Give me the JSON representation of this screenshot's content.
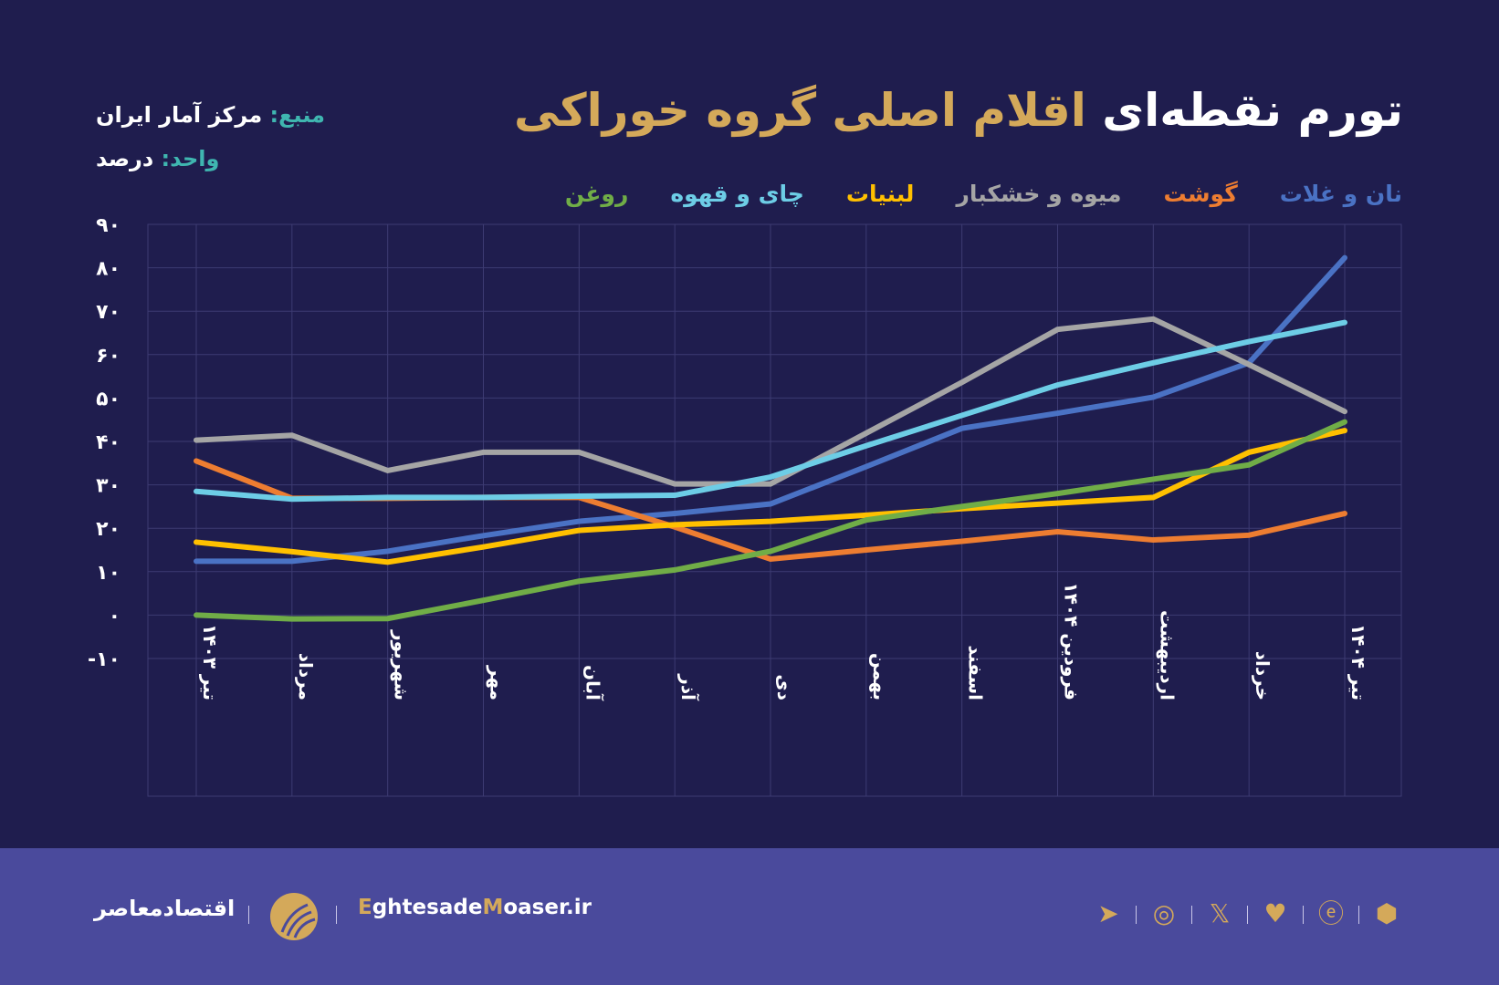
{
  "title": {
    "part1": "تورم نقطه‌ای",
    "part2": "اقلام اصلی گروه خوراکی"
  },
  "meta": {
    "source_label": "منبع:",
    "source_value": "مرکز آمار ایران",
    "unit_label": "واحد:",
    "unit_value": "درصد"
  },
  "colors": {
    "background": "#1f1d4e",
    "footer": "#4a4a9c",
    "gold": "#d4a95a",
    "meta_label": "#3fb6b0",
    "grid": "#3d3b72"
  },
  "chart_data": {
    "type": "line",
    "ylim": [
      -10,
      90
    ],
    "grid": true,
    "legend": "top",
    "y_ticks": [
      90,
      80,
      70,
      60,
      50,
      40,
      30,
      20,
      10,
      0,
      -10
    ],
    "y_tick_labels": [
      "۹۰",
      "۸۰",
      "۷۰",
      "۶۰",
      "۵۰",
      "۴۰",
      "۳۰",
      "۲۰",
      "۱۰",
      "۰",
      "-۱۰"
    ],
    "categories": [
      "تیر ۱۴۰۳",
      "مرداد",
      "شهریور",
      "مهر",
      "آبان",
      "آذر",
      "دی",
      "بهمن",
      "اسفند",
      "فرودین ۱۴۰۴",
      "اردیبهشت",
      "خرداد",
      "تیر ۱۴۰۴"
    ],
    "series": [
      {
        "name": "نان و غلات",
        "color": "#4a72c4",
        "values": [
          12.4,
          12.4,
          14.7,
          18.3,
          21.6,
          23.4,
          25.6,
          34.2,
          43,
          46.5,
          50.2,
          58.1,
          82.3
        ]
      },
      {
        "name": "گوشت",
        "color": "#ed7d31",
        "values": [
          35.5,
          26.9,
          26.9,
          27.1,
          27.1,
          20.3,
          12.9,
          15,
          17,
          19.2,
          17.3,
          18.4,
          23.4
        ]
      },
      {
        "name": "میوه و خشکبار",
        "color": "#a5a5a5",
        "values": [
          40.3,
          41.4,
          33.3,
          37.5,
          37.5,
          30.2,
          30.2,
          41.9,
          53.6,
          65.8,
          68.2,
          57.7,
          46.9
        ]
      },
      {
        "name": "لبنیات",
        "color": "#ffc000",
        "values": [
          16.8,
          14.6,
          12.2,
          15.7,
          19.5,
          20.8,
          21.6,
          23,
          24.5,
          25.8,
          27.1,
          37.5,
          42.5
        ]
      },
      {
        "name": "چای و قهوه",
        "color": "#6dcde6",
        "values": [
          28.5,
          26.7,
          27.1,
          27.1,
          27.4,
          27.6,
          31.8,
          39,
          46,
          53,
          58.1,
          63,
          67.4
        ]
      },
      {
        "name": "روغن",
        "color": "#70ad47",
        "values": [
          0,
          -0.9,
          -0.8,
          3.4,
          7.8,
          10.4,
          14.7,
          21.9,
          25,
          28,
          31.3,
          34.6,
          44.5
        ]
      }
    ]
  },
  "footer": {
    "brand_fa": "اقتصادمعاصر",
    "site_e": "E",
    "site_mid": "ghtesade",
    "site_m": "M",
    "site_rest": "oaser.ir",
    "social_icons": [
      "telegram-icon",
      "instagram-icon",
      "x-icon",
      "bale-icon",
      "eitaa-icon",
      "rubika-icon"
    ]
  }
}
